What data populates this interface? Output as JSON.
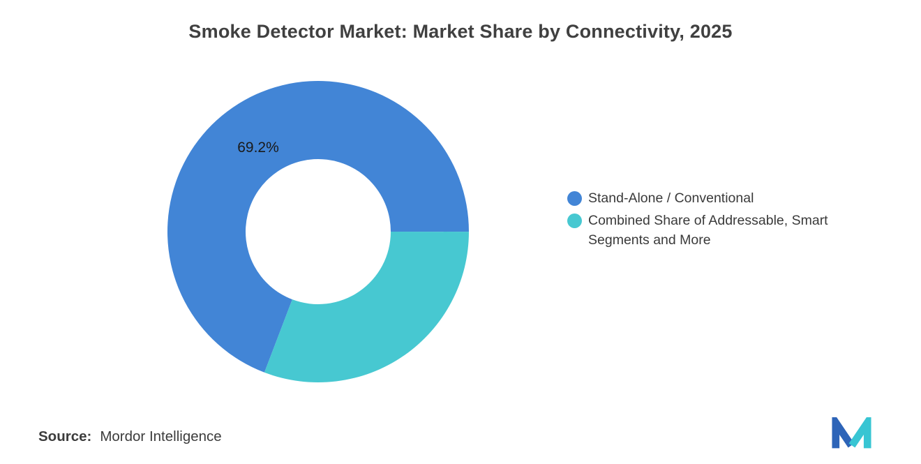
{
  "title": "Smoke Detector Market: Market Share by Connectivity, 2025",
  "chart_data": {
    "type": "pie",
    "subtype": "donut",
    "title": "Smoke Detector Market: Market Share by Connectivity, 2025",
    "units": "percent",
    "start_angle_deg": 110.9,
    "direction": "clockwise",
    "inner_radius_ratio": 0.48,
    "legend_position": "right",
    "slices": [
      {
        "label": "Stand-Alone / Conventional",
        "value": 69.2,
        "color": "#4285D6",
        "data_label": "69.2%"
      },
      {
        "label": "Combined Share of Addressable, Smart Segments and More",
        "value": 30.8,
        "color": "#47C8D1",
        "data_label": ""
      }
    ]
  },
  "legend": {
    "items": [
      {
        "label": "Stand-Alone / Conventional",
        "color": "#4285D6"
      },
      {
        "label": "Combined Share of Addressable, Smart Segments and More",
        "color": "#47C8D1"
      }
    ]
  },
  "source": {
    "label": "Source:",
    "value": "Mordor Intelligence"
  },
  "logo": {
    "name": "mordor-intelligence-logo",
    "blue": "#2D64B8",
    "teal": "#38C5D3"
  }
}
